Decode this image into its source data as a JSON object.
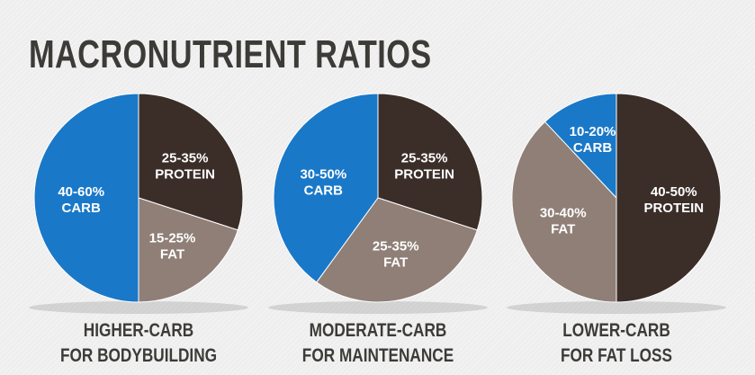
{
  "title": "MACRONUTRIENT RATIOS",
  "colors": {
    "carb": "#1a78c8",
    "protein": "#3b2e29",
    "fat": "#8f7f77",
    "title_text": "#3d3b38"
  },
  "chart_data": [
    {
      "type": "pie",
      "caption_line1": "HIGHER-CARB",
      "caption_line2": "FOR BODYBUILDING",
      "slices": [
        {
          "name": "PROTEIN",
          "range": "25-35%",
          "value": 30,
          "color": "#3b2e29"
        },
        {
          "name": "FAT",
          "range": "15-25%",
          "value": 20,
          "color": "#8f7f77"
        },
        {
          "name": "CARB",
          "range": "40-60%",
          "value": 50,
          "color": "#1a78c8"
        }
      ]
    },
    {
      "type": "pie",
      "caption_line1": "MODERATE-CARB",
      "caption_line2": "FOR MAINTENANCE",
      "slices": [
        {
          "name": "PROTEIN",
          "range": "25-35%",
          "value": 30,
          "color": "#3b2e29"
        },
        {
          "name": "FAT",
          "range": "25-35%",
          "value": 30,
          "color": "#8f7f77"
        },
        {
          "name": "CARB",
          "range": "30-50%",
          "value": 40,
          "color": "#1a78c8"
        }
      ]
    },
    {
      "type": "pie",
      "caption_line1": "LOWER-CARB",
      "caption_line2": "FOR FAT LOSS",
      "slices": [
        {
          "name": "PROTEIN",
          "range": "40-50%",
          "value": 50,
          "color": "#3b2e29"
        },
        {
          "name": "FAT",
          "range": "30-40%",
          "value": 38,
          "color": "#8f7f77"
        },
        {
          "name": "CARB",
          "range": "10-20%",
          "value": 12,
          "color": "#1a78c8"
        }
      ]
    }
  ]
}
